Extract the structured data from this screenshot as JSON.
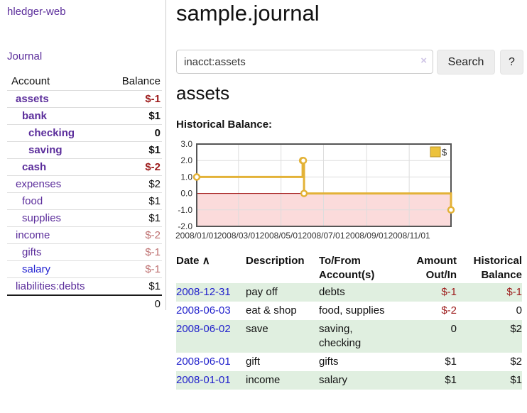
{
  "sidebar": {
    "brand": "hledger-web",
    "nav": {
      "journal": "Journal"
    },
    "accounts_table": {
      "headers": {
        "account": "Account",
        "balance": "Balance"
      },
      "rows": [
        {
          "name": "assets",
          "depth": 1,
          "bold": true,
          "balance": "$-1",
          "neg": "strong",
          "link_color": "purple"
        },
        {
          "name": "bank",
          "depth": 2,
          "bold": true,
          "balance": "$1",
          "neg": null,
          "link_color": "purple"
        },
        {
          "name": "checking",
          "depth": 3,
          "bold": true,
          "balance": "0",
          "neg": null,
          "link_color": "purple"
        },
        {
          "name": "saving",
          "depth": 3,
          "bold": true,
          "balance": "$1",
          "neg": null,
          "link_color": "purple"
        },
        {
          "name": "cash",
          "depth": 2,
          "bold": true,
          "balance": "$-2",
          "neg": "strong",
          "link_color": "purple"
        },
        {
          "name": "expenses",
          "depth": 1,
          "bold": false,
          "balance": "$2",
          "neg": null,
          "link_color": "purple"
        },
        {
          "name": "food",
          "depth": 2,
          "bold": false,
          "balance": "$1",
          "neg": null,
          "link_color": "purple"
        },
        {
          "name": "supplies",
          "depth": 2,
          "bold": false,
          "balance": "$1",
          "neg": null,
          "link_color": "purple"
        },
        {
          "name": "income",
          "depth": 1,
          "bold": false,
          "balance": "$-2",
          "neg": "soft",
          "link_color": "purple"
        },
        {
          "name": "gifts",
          "depth": 2,
          "bold": false,
          "balance": "$-1",
          "neg": "soft",
          "link_color": "purple"
        },
        {
          "name": "salary",
          "depth": 2,
          "bold": false,
          "balance": "$-1",
          "neg": "soft",
          "link_color": "blue"
        },
        {
          "name": "liabilities:debts",
          "depth": 1,
          "bold": false,
          "balance": "$1",
          "neg": null,
          "link_color": "purple"
        }
      ],
      "total": "0"
    }
  },
  "header": {
    "title": "sample.journal"
  },
  "search": {
    "value": "inacct:assets",
    "clear_icon": "×",
    "button": "Search",
    "help_button": "?"
  },
  "account_page": {
    "title": "assets",
    "chart_label": "Historical Balance:"
  },
  "chart_data": {
    "type": "line",
    "step": true,
    "title": "Historical Balance",
    "xlabel": "",
    "ylabel": "",
    "x_range": [
      "2008-01-01",
      "2008-12-31"
    ],
    "ylim": [
      -2,
      3
    ],
    "y_ticks": [
      3.0,
      2.0,
      1.0,
      0.0,
      -1.0,
      -2.0
    ],
    "x_ticks": [
      "2008/01/01",
      "2008/03/01",
      "2008/05/01",
      "2008/07/01",
      "2008/09/01",
      "2008/11/01"
    ],
    "grid": true,
    "legend": {
      "label": "$",
      "position": "top-right"
    },
    "series": [
      {
        "name": "$",
        "color": "#e3b237",
        "points": [
          {
            "date": "2008-01-01",
            "value": 1
          },
          {
            "date": "2008-06-01",
            "value": 2
          },
          {
            "date": "2008-06-02",
            "value": 2
          },
          {
            "date": "2008-06-03",
            "value": 0
          },
          {
            "date": "2008-12-31",
            "value": -1
          }
        ]
      }
    ],
    "negative_fill": "#fbdbdb",
    "zero_line_color": "#990000",
    "border_color": "#555555",
    "grid_color": "#dddddd"
  },
  "transactions": {
    "headers": {
      "date": "Date",
      "description": "Description",
      "account": "To/From Account(s)",
      "amount": "Amount Out/In",
      "balance": "Historical Balance"
    },
    "sort_indicator": "∧",
    "rows": [
      {
        "date": "2008-12-31",
        "description": "pay off",
        "accounts": "debts",
        "amount": "$-1",
        "amount_neg": true,
        "balance": "$-1",
        "balance_neg": true
      },
      {
        "date": "2008-06-03",
        "description": "eat & shop",
        "accounts": "food, supplies",
        "amount": "$-2",
        "amount_neg": true,
        "balance": "0",
        "balance_neg": false
      },
      {
        "date": "2008-06-02",
        "description": "save",
        "accounts": "saving, checking",
        "amount": "0",
        "amount_neg": false,
        "balance": "$2",
        "balance_neg": false
      },
      {
        "date": "2008-06-01",
        "description": "gift",
        "accounts": "gifts",
        "amount": "$1",
        "amount_neg": false,
        "balance": "$2",
        "balance_neg": false
      },
      {
        "date": "2008-01-01",
        "description": "income",
        "accounts": "salary",
        "amount": "$1",
        "amount_neg": false,
        "balance": "$1",
        "balance_neg": false
      }
    ]
  },
  "colors": {
    "link_purple": "#5b2d9b",
    "link_blue": "#2323d1",
    "date_link_blue": "#2222cc",
    "negative_strong": "#9c1a1a",
    "negative_soft": "#bd6e6e",
    "row_stripe_green": "#e0efe0",
    "chart_gold": "#e3b237",
    "chart_negative_pink": "#fbdbdb",
    "chart_zero_red": "#990000"
  }
}
